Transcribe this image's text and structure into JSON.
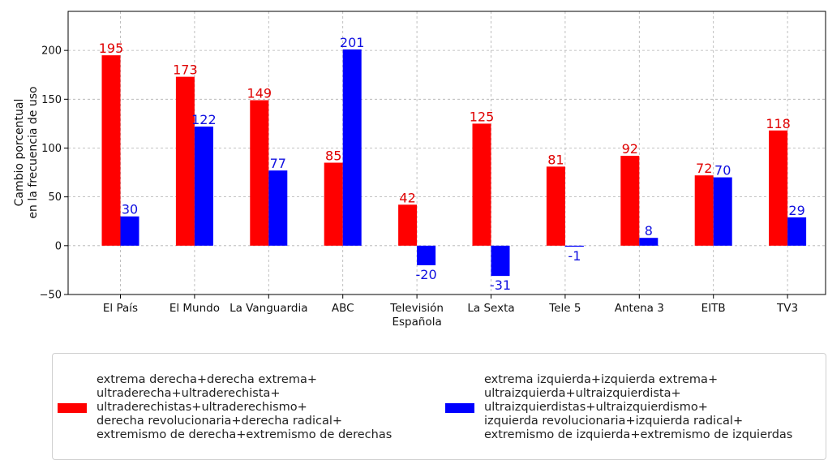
{
  "chart_data": {
    "type": "bar",
    "ylabel": [
      "Cambio porcentual",
      "en la frecuencia de uso"
    ],
    "ylim": [
      -50,
      240
    ],
    "yticks": [
      -50,
      0,
      50,
      100,
      150,
      200
    ],
    "grid": true,
    "categories": [
      [
        "El País"
      ],
      [
        "El Mundo"
      ],
      [
        "La Vanguardia"
      ],
      [
        "ABC"
      ],
      [
        "Televisión",
        "Española"
      ],
      [
        "La Sexta"
      ],
      [
        "Tele 5"
      ],
      [
        "Antena 3"
      ],
      [
        "EITB"
      ],
      [
        "TV3"
      ]
    ],
    "series": [
      {
        "color": "#ff0000",
        "label_color": "#e00000",
        "values": [
          195,
          173,
          149,
          85,
          42,
          125,
          81,
          92,
          72,
          118
        ]
      },
      {
        "color": "#0000ff",
        "label_color": "#1010e0",
        "values": [
          30,
          122,
          77,
          201,
          -20,
          -31,
          -1,
          8,
          70,
          29
        ]
      }
    ],
    "legend": {
      "placement": "bottom",
      "entries": [
        {
          "color": "#ff0000",
          "lines": [
            "extrema derecha+derecha extrema+",
            "ultraderecha+ultraderechista+",
            "ultraderechistas+ultraderechismo+",
            "derecha revolucionaria+derecha radical+",
            "extremismo de derecha+extremismo de derechas"
          ]
        },
        {
          "color": "#0000ff",
          "lines": [
            "extrema izquierda+izquierda extrema+",
            "ultraizquierda+ultraizquierdista+",
            "ultraizquierdistas+ultraizquierdismo+",
            "izquierda revolucionaria+izquierda radical+",
            "extremismo de izquierda+extremismo de izquierdas"
          ]
        }
      ]
    }
  }
}
